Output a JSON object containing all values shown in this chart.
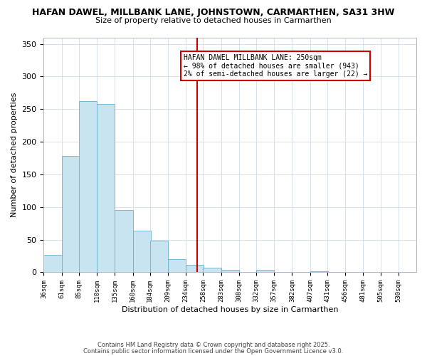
{
  "title": "HAFAN DAWEL, MILLBANK LANE, JOHNSTOWN, CARMARTHEN, SA31 3HW",
  "subtitle": "Size of property relative to detached houses in Carmarthen",
  "xlabel": "Distribution of detached houses by size in Carmarthen",
  "ylabel": "Number of detached properties",
  "bar_color": "#c8e4f0",
  "bar_edge_color": "#6ab0d0",
  "background_color": "#ffffff",
  "grid_color": "#d0dce8",
  "annotation_text": "HAFAN DAWEL MILLBANK LANE: 250sqm\n← 98% of detached houses are smaller (943)\n2% of semi-detached houses are larger (22) →",
  "vline_x": 250,
  "vline_color": "#cc0000",
  "categories": [
    "36sqm",
    "61sqm",
    "85sqm",
    "110sqm",
    "135sqm",
    "160sqm",
    "184sqm",
    "209sqm",
    "234sqm",
    "258sqm",
    "283sqm",
    "308sqm",
    "332sqm",
    "357sqm",
    "382sqm",
    "407sqm",
    "431sqm",
    "456sqm",
    "481sqm",
    "505sqm",
    "530sqm"
  ],
  "bin_edges": [
    36,
    61,
    85,
    110,
    135,
    160,
    184,
    209,
    234,
    258,
    283,
    308,
    332,
    357,
    382,
    407,
    431,
    456,
    481,
    505,
    530
  ],
  "bin_width": 25,
  "values": [
    27,
    178,
    262,
    258,
    95,
    64,
    49,
    20,
    11,
    7,
    4,
    0,
    4,
    0,
    0,
    2,
    0,
    0,
    0,
    0,
    0
  ],
  "ylim": [
    0,
    360
  ],
  "yticks": [
    0,
    50,
    100,
    150,
    200,
    250,
    300,
    350
  ],
  "footnote1": "Contains HM Land Registry data © Crown copyright and database right 2025.",
  "footnote2": "Contains public sector information licensed under the Open Government Licence v3.0."
}
